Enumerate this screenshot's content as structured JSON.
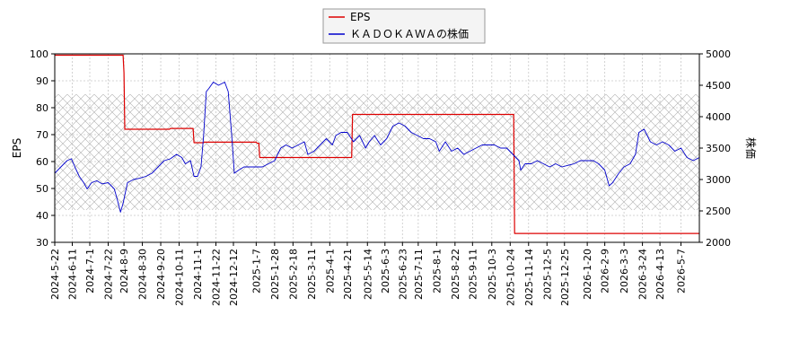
{
  "chart_data": {
    "type": "line",
    "ylabel_left": "EPS",
    "ylabel_right": "株価",
    "legend": {
      "position": "top-center",
      "items": [
        {
          "label": "EPS",
          "color": "#dd0000"
        },
        {
          "label": "ＫＡＤＯＫＡＷＡの株価",
          "color": "#0000cc"
        }
      ]
    },
    "grid": true,
    "hatched_band_left_axis": [
      42,
      85
    ],
    "ylim_left": [
      30,
      100
    ],
    "yticks_left": [
      30,
      40,
      50,
      60,
      70,
      80,
      90,
      100
    ],
    "ylim_right": [
      2000,
      5000
    ],
    "yticks_right": [
      2000,
      2500,
      3000,
      3500,
      4000,
      4500,
      5000
    ],
    "x_range": [
      "2024-05-22",
      "2026-05-28"
    ],
    "x_ticks": [
      "2024-5-22",
      "2024-6-11",
      "2024-7-1",
      "2024-7-22",
      "2024-8-9",
      "2024-8-30",
      "2024-9-20",
      "2024-10-11",
      "2024-11-1",
      "2024-11-22",
      "2024-12-12",
      "2025-1-7",
      "2025-1-28",
      "2025-2-18",
      "2025-3-11",
      "2025-4-1",
      "2025-4-21",
      "2025-5-14",
      "2025-6-3",
      "2025-6-23",
      "2025-7-11",
      "2025-8-1",
      "2025-8-22",
      "2025-9-11",
      "2025-10-3",
      "2025-10-24",
      "2025-11-14",
      "2025-12-5",
      "2025-12-25",
      "2026-1-20",
      "2026-2-9",
      "2026-3-3",
      "2026-3-24",
      "2026-4-13",
      "2026-5-7"
    ],
    "series": [
      {
        "name": "EPS",
        "axis": "left",
        "color": "#dd0000",
        "step": true,
        "points": [
          [
            "2024-05-22",
            99.5
          ],
          [
            "2024-08-08",
            99.5
          ],
          [
            "2024-08-09",
            93
          ],
          [
            "2024-08-10",
            72
          ],
          [
            "2024-09-30",
            72
          ],
          [
            "2024-10-01",
            72.3
          ],
          [
            "2024-10-27",
            72.3
          ],
          [
            "2024-10-28",
            67
          ],
          [
            "2024-11-08",
            67
          ],
          [
            "2024-11-09",
            67.2
          ],
          [
            "2025-01-07",
            67.2
          ],
          [
            "2025-01-08",
            66.8
          ],
          [
            "2025-01-10",
            66.8
          ],
          [
            "2025-01-11",
            61.5
          ],
          [
            "2025-04-26",
            61.5
          ],
          [
            "2025-04-27",
            77.5
          ],
          [
            "2025-10-28",
            77.5
          ],
          [
            "2025-10-29",
            33.3
          ],
          [
            "2026-05-28",
            33.3
          ]
        ]
      },
      {
        "name": "ＫＡＤＯＫＡＷＡの株価",
        "axis": "right",
        "color": "#0000cc",
        "step": false,
        "points": [
          [
            "2024-05-22",
            3100
          ],
          [
            "2024-05-29",
            3200
          ],
          [
            "2024-06-05",
            3300
          ],
          [
            "2024-06-10",
            3330
          ],
          [
            "2024-06-14",
            3200
          ],
          [
            "2024-06-19",
            3050
          ],
          [
            "2024-06-24",
            2950
          ],
          [
            "2024-06-28",
            2850
          ],
          [
            "2024-07-03",
            2950
          ],
          [
            "2024-07-09",
            2980
          ],
          [
            "2024-07-15",
            2930
          ],
          [
            "2024-07-22",
            2950
          ],
          [
            "2024-07-29",
            2850
          ],
          [
            "2024-08-01",
            2700
          ],
          [
            "2024-08-05",
            2480
          ],
          [
            "2024-08-08",
            2620
          ],
          [
            "2024-08-13",
            2950
          ],
          [
            "2024-08-20",
            3000
          ],
          [
            "2024-08-27",
            3020
          ],
          [
            "2024-09-03",
            3050
          ],
          [
            "2024-09-10",
            3100
          ],
          [
            "2024-09-17",
            3200
          ],
          [
            "2024-09-24",
            3300
          ],
          [
            "2024-10-01",
            3330
          ],
          [
            "2024-10-08",
            3400
          ],
          [
            "2024-10-14",
            3350
          ],
          [
            "2024-10-18",
            3250
          ],
          [
            "2024-10-24",
            3300
          ],
          [
            "2024-10-28",
            3050
          ],
          [
            "2024-11-01",
            3050
          ],
          [
            "2024-11-05",
            3200
          ],
          [
            "2024-11-08",
            3700
          ],
          [
            "2024-11-11",
            4400
          ],
          [
            "2024-11-14",
            4450
          ],
          [
            "2024-11-19",
            4550
          ],
          [
            "2024-11-25",
            4500
          ],
          [
            "2024-12-02",
            4550
          ],
          [
            "2024-12-06",
            4400
          ],
          [
            "2024-12-10",
            3700
          ],
          [
            "2024-12-13",
            3100
          ],
          [
            "2024-12-18",
            3150
          ],
          [
            "2024-12-24",
            3200
          ],
          [
            "2025-01-07",
            3200
          ],
          [
            "2025-01-14",
            3200
          ],
          [
            "2025-01-21",
            3250
          ],
          [
            "2025-01-28",
            3300
          ],
          [
            "2025-02-04",
            3500
          ],
          [
            "2025-02-10",
            3550
          ],
          [
            "2025-02-17",
            3500
          ],
          [
            "2025-02-24",
            3550
          ],
          [
            "2025-03-03",
            3600
          ],
          [
            "2025-03-07",
            3400
          ],
          [
            "2025-03-14",
            3450
          ],
          [
            "2025-03-21",
            3550
          ],
          [
            "2025-03-28",
            3650
          ],
          [
            "2025-04-04",
            3550
          ],
          [
            "2025-04-08",
            3700
          ],
          [
            "2025-04-14",
            3750
          ],
          [
            "2025-04-21",
            3750
          ],
          [
            "2025-04-28",
            3600
          ],
          [
            "2025-05-05",
            3700
          ],
          [
            "2025-05-12",
            3500
          ],
          [
            "2025-05-16",
            3600
          ],
          [
            "2025-05-22",
            3700
          ],
          [
            "2025-05-29",
            3550
          ],
          [
            "2025-06-05",
            3650
          ],
          [
            "2025-06-12",
            3850
          ],
          [
            "2025-06-19",
            3900
          ],
          [
            "2025-06-26",
            3850
          ],
          [
            "2025-07-03",
            3750
          ],
          [
            "2025-07-10",
            3700
          ],
          [
            "2025-07-17",
            3650
          ],
          [
            "2025-07-24",
            3650
          ],
          [
            "2025-07-31",
            3600
          ],
          [
            "2025-08-04",
            3450
          ],
          [
            "2025-08-11",
            3600
          ],
          [
            "2025-08-18",
            3450
          ],
          [
            "2025-08-25",
            3500
          ],
          [
            "2025-09-01",
            3400
          ],
          [
            "2025-09-08",
            3450
          ],
          [
            "2025-09-15",
            3500
          ],
          [
            "2025-09-22",
            3550
          ],
          [
            "2025-09-29",
            3550
          ],
          [
            "2025-10-06",
            3550
          ],
          [
            "2025-10-13",
            3500
          ],
          [
            "2025-10-20",
            3500
          ],
          [
            "2025-10-27",
            3400
          ],
          [
            "2025-11-03",
            3300
          ],
          [
            "2025-11-05",
            3150
          ],
          [
            "2025-11-10",
            3250
          ],
          [
            "2025-11-17",
            3250
          ],
          [
            "2025-11-24",
            3300
          ],
          [
            "2025-12-01",
            3250
          ],
          [
            "2025-12-08",
            3200
          ],
          [
            "2025-12-15",
            3250
          ],
          [
            "2025-12-22",
            3200
          ],
          [
            "2026-01-05",
            3250
          ],
          [
            "2026-01-12",
            3300
          ],
          [
            "2026-01-20",
            3300
          ],
          [
            "2026-01-27",
            3300
          ],
          [
            "2026-02-02",
            3250
          ],
          [
            "2026-02-09",
            3150
          ],
          [
            "2026-02-14",
            2900
          ],
          [
            "2026-02-18",
            2950
          ],
          [
            "2026-02-25",
            3100
          ],
          [
            "2026-03-03",
            3200
          ],
          [
            "2026-03-10",
            3250
          ],
          [
            "2026-03-16",
            3400
          ],
          [
            "2026-03-20",
            3750
          ],
          [
            "2026-03-26",
            3800
          ],
          [
            "2026-04-02",
            3600
          ],
          [
            "2026-04-09",
            3550
          ],
          [
            "2026-04-16",
            3600
          ],
          [
            "2026-04-23",
            3550
          ],
          [
            "2026-04-30",
            3450
          ],
          [
            "2026-05-07",
            3500
          ],
          [
            "2026-05-14",
            3350
          ],
          [
            "2026-05-21",
            3300
          ],
          [
            "2026-05-28",
            3350
          ]
        ]
      }
    ]
  }
}
